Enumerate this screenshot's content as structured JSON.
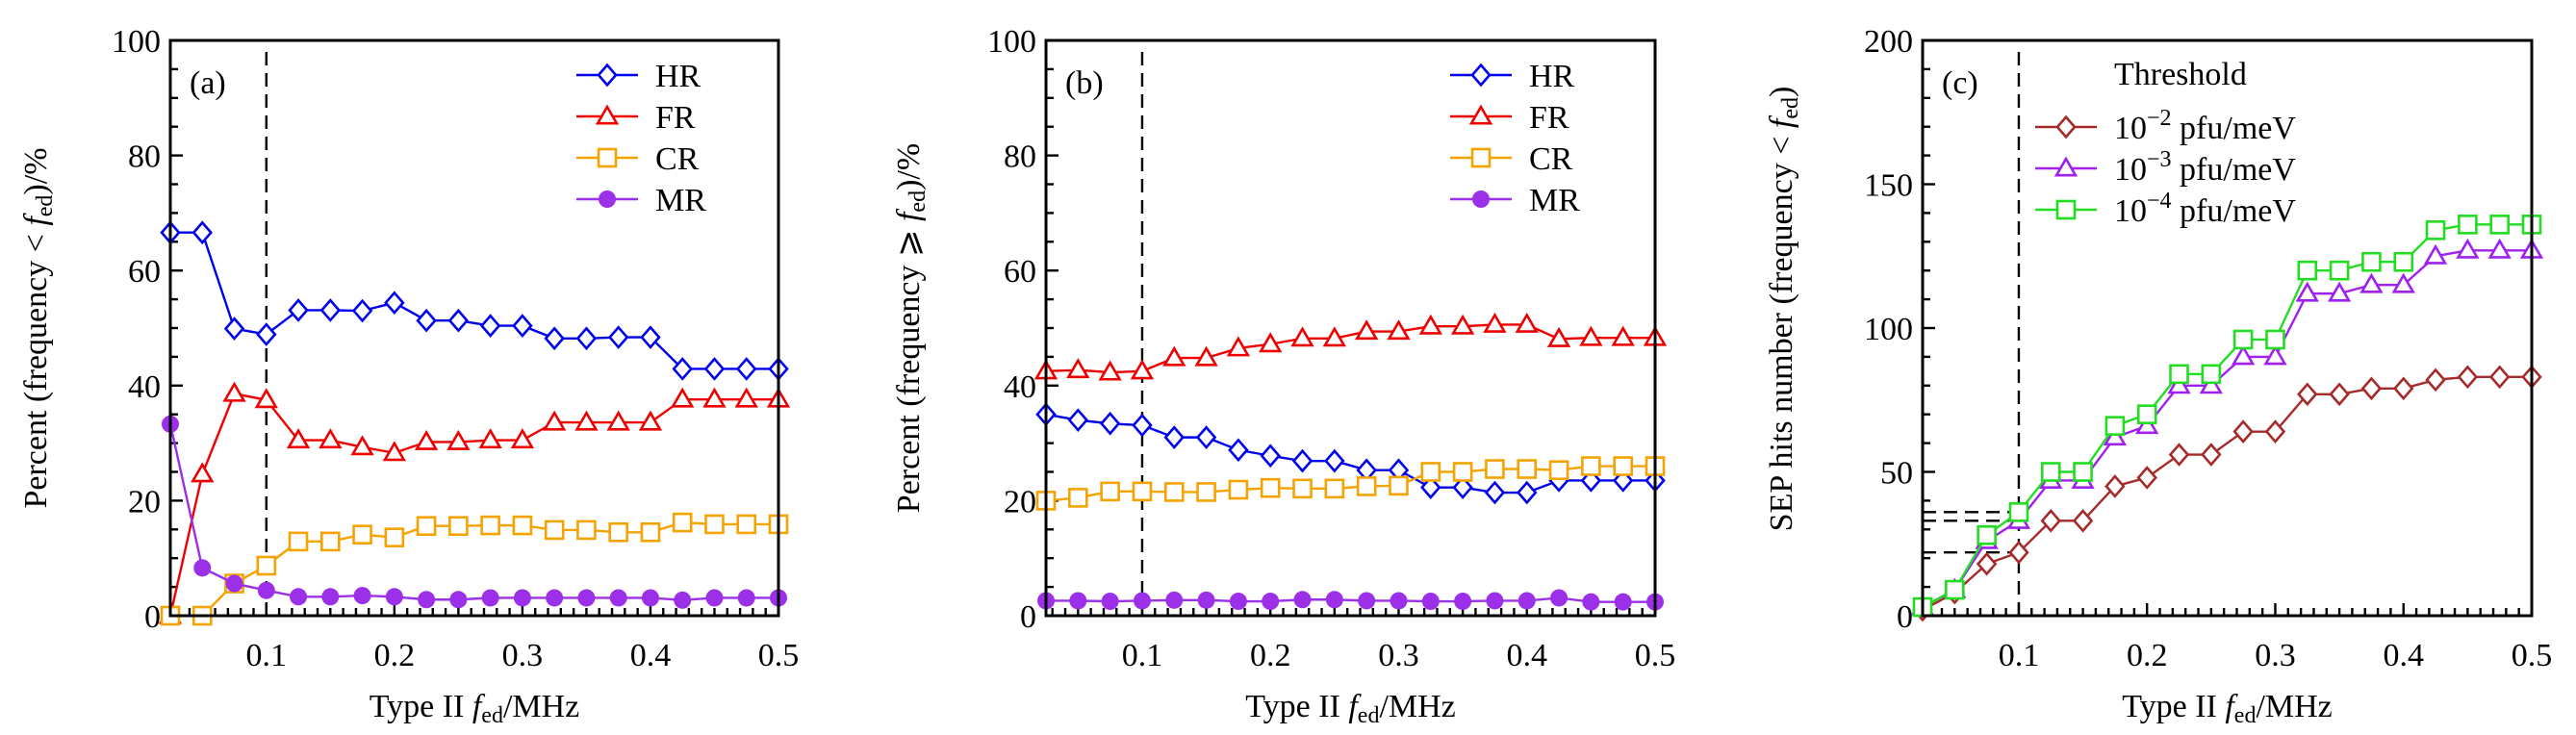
{
  "chart_data": [
    {
      "type": "line",
      "panel_label": "(a)",
      "xlabel": {
        "prefix": "Type II ",
        "symbol": "f",
        "sub": "ed",
        "suffix": "/MHz"
      },
      "ylabel": {
        "prefix": "Percent (frequency < ",
        "symbol": "f",
        "sub": "ed",
        "suffix": ")/%"
      },
      "xlim": [
        0.025,
        0.5
      ],
      "ylim": [
        0,
        100
      ],
      "xticks": [
        "0.1",
        "0.2",
        "0.3",
        "0.4",
        "0.5"
      ],
      "yticks": [
        "0",
        "20",
        "40",
        "60",
        "80",
        "100"
      ],
      "reference_line_x": 0.1,
      "legend_position": "top-right",
      "x": [
        0.025,
        0.05,
        0.075,
        0.1,
        0.125,
        0.15,
        0.175,
        0.2,
        0.225,
        0.25,
        0.275,
        0.3,
        0.325,
        0.35,
        0.375,
        0.4,
        0.425,
        0.45,
        0.475,
        0.5
      ],
      "series": [
        {
          "name": "HR",
          "color": "#0000ee",
          "marker": "diamond-open",
          "values": [
            66.6,
            66.6,
            49.9,
            48.9,
            53.1,
            53.1,
            53.0,
            54.4,
            51.3,
            51.3,
            50.4,
            50.4,
            48.2,
            48.2,
            48.4,
            48.4,
            42.9,
            42.9,
            42.9,
            42.9
          ]
        },
        {
          "name": "FR",
          "color": "#ee0000",
          "marker": "triangle-open",
          "values": [
            0,
            24.6,
            38.6,
            37.5,
            30.5,
            30.5,
            29.3,
            28.3,
            30.2,
            30.2,
            30.5,
            30.5,
            33.6,
            33.6,
            33.6,
            33.6,
            37.6,
            37.6,
            37.6,
            37.6
          ]
        },
        {
          "name": "CR",
          "color": "#f5a300",
          "marker": "square-open",
          "values": [
            0,
            0,
            5.6,
            8.7,
            12.9,
            12.9,
            14.1,
            13.6,
            15.6,
            15.6,
            15.7,
            15.7,
            14.9,
            14.9,
            14.5,
            14.5,
            16.2,
            15.9,
            15.9,
            15.9
          ]
        },
        {
          "name": "MR",
          "color": "#9b30e8",
          "marker": "circle-filled",
          "values": [
            33.3,
            8.3,
            5.6,
            4.4,
            3.3,
            3.3,
            3.5,
            3.3,
            2.8,
            2.8,
            3.1,
            3.1,
            3.1,
            3.1,
            3.1,
            3.1,
            2.7,
            3.1,
            3.1,
            3.1
          ]
        }
      ]
    },
    {
      "type": "line",
      "panel_label": "(b)",
      "xlabel": {
        "prefix": "Type II ",
        "symbol": "f",
        "sub": "ed",
        "suffix": "/MHz"
      },
      "ylabel": {
        "prefix": "Percent (frequency ⩾ ",
        "symbol": "f",
        "sub": "ed",
        "suffix": ")/%"
      },
      "xlim": [
        0.025,
        0.5
      ],
      "ylim": [
        0,
        100
      ],
      "xticks": [
        "0.1",
        "0.2",
        "0.3",
        "0.4",
        "0.5"
      ],
      "yticks": [
        "0",
        "20",
        "40",
        "60",
        "80",
        "100"
      ],
      "reference_line_x": 0.1,
      "legend_position": "top-right",
      "x": [
        0.025,
        0.05,
        0.075,
        0.1,
        0.125,
        0.15,
        0.175,
        0.2,
        0.225,
        0.25,
        0.275,
        0.3,
        0.325,
        0.35,
        0.375,
        0.4,
        0.425,
        0.45,
        0.475,
        0.5
      ],
      "series": [
        {
          "name": "HR",
          "color": "#0000ee",
          "marker": "diamond-open",
          "values": [
            35.0,
            34.0,
            33.4,
            33.1,
            31.0,
            31.0,
            28.8,
            27.8,
            26.9,
            26.9,
            25.3,
            25.3,
            22.3,
            22.3,
            21.4,
            21.4,
            23.5,
            23.5,
            23.5,
            23.5
          ]
        },
        {
          "name": "FR",
          "color": "#ee0000",
          "marker": "triangle-open",
          "values": [
            42.5,
            42.7,
            42.3,
            42.5,
            44.8,
            44.8,
            46.5,
            47.2,
            48.2,
            48.2,
            49.4,
            49.4,
            50.3,
            50.3,
            50.6,
            50.6,
            48.1,
            48.3,
            48.3,
            48.3
          ]
        },
        {
          "name": "CR",
          "color": "#f5a300",
          "marker": "square-open",
          "values": [
            20.0,
            20.5,
            21.6,
            21.6,
            21.5,
            21.5,
            21.9,
            22.2,
            22.1,
            22.1,
            22.5,
            22.6,
            25.0,
            25.0,
            25.5,
            25.5,
            25.3,
            26.0,
            26.0,
            26.0
          ]
        },
        {
          "name": "MR",
          "color": "#9b30e8",
          "marker": "circle-filled",
          "values": [
            2.6,
            2.6,
            2.5,
            2.6,
            2.7,
            2.7,
            2.5,
            2.5,
            2.8,
            2.8,
            2.6,
            2.6,
            2.5,
            2.5,
            2.6,
            2.6,
            3.1,
            2.4,
            2.4,
            2.4
          ]
        }
      ]
    },
    {
      "type": "line",
      "panel_label": "(c)",
      "xlabel": {
        "prefix": "Type II ",
        "symbol": "f",
        "sub": "ed",
        "suffix": "/MHz"
      },
      "ylabel": {
        "prefix": "SEP hits number (frequency < ",
        "symbol": "f",
        "sub": "ed",
        "suffix": ")"
      },
      "xlim": [
        0.025,
        0.5
      ],
      "ylim": [
        0,
        200
      ],
      "xticks": [
        "0.1",
        "0.2",
        "0.3",
        "0.4",
        "0.5"
      ],
      "yticks": [
        "0",
        "50",
        "100",
        "150",
        "200"
      ],
      "reference_line_x": 0.1,
      "reference_lines_y": [
        22,
        33,
        36
      ],
      "legend_position": "top-center",
      "legend_title": "Threshold",
      "x": [
        0.025,
        0.05,
        0.075,
        0.1,
        0.125,
        0.15,
        0.175,
        0.2,
        0.225,
        0.25,
        0.275,
        0.3,
        0.325,
        0.35,
        0.375,
        0.4,
        0.425,
        0.45,
        0.475,
        0.5
      ],
      "series": [
        {
          "name": {
            "base": "10",
            "exp": "−2",
            "unit": " pfu/meV"
          },
          "color": "#a52a2a",
          "marker": "diamond-open",
          "values": [
            2,
            8,
            18,
            22,
            33,
            33,
            45,
            48,
            56,
            56,
            64,
            64,
            77,
            77,
            79,
            79,
            82,
            83,
            83,
            83
          ]
        },
        {
          "name": {
            "base": "10",
            "exp": "−3",
            "unit": " pfu/meV"
          },
          "color": "#a020f0",
          "marker": "triangle-open",
          "values": [
            3,
            9,
            26,
            33,
            47,
            47,
            62,
            66,
            80,
            80,
            90,
            90,
            112,
            112,
            115,
            115,
            125,
            127,
            127,
            127
          ]
        },
        {
          "name": {
            "base": "10",
            "exp": "−4",
            "unit": " pfu/meV"
          },
          "color": "#22dd22",
          "marker": "square-open",
          "values": [
            3,
            9,
            28,
            36,
            50,
            50,
            66,
            70,
            84,
            84,
            96,
            96,
            120,
            120,
            123,
            123,
            134,
            136,
            136,
            136
          ]
        }
      ]
    }
  ]
}
